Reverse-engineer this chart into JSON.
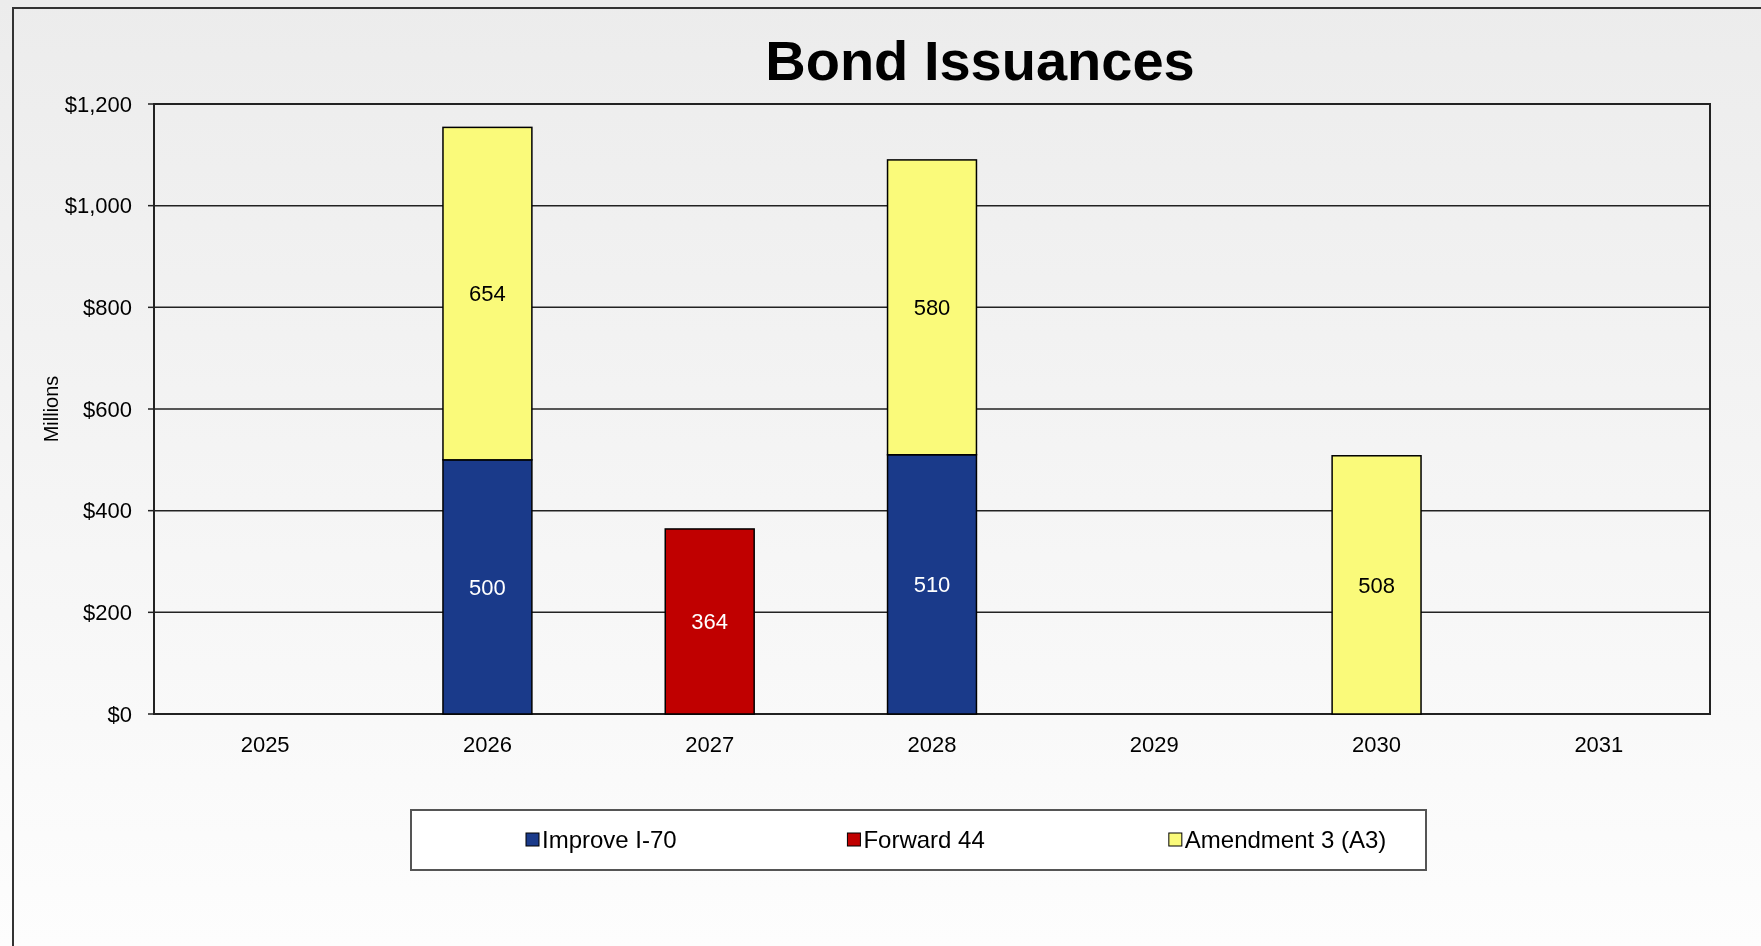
{
  "chart_data": {
    "type": "bar",
    "title": "Bond Issuances",
    "ylabel": "Millions",
    "categories": [
      "2025",
      "2026",
      "2027",
      "2028",
      "2029",
      "2030",
      "2031"
    ],
    "series": [
      {
        "name": "Improve I-70",
        "color": "#1a3a8a",
        "values": [
          null,
          500,
          null,
          510,
          null,
          null,
          null
        ]
      },
      {
        "name": "Forward 44",
        "color": "#c00000",
        "values": [
          null,
          null,
          364,
          null,
          null,
          null,
          null
        ]
      },
      {
        "name": "Amendment 3 (A3)",
        "color": "#fafa7a",
        "values": [
          null,
          654,
          null,
          580,
          null,
          508,
          null
        ]
      }
    ],
    "stacked": true,
    "data_labels": true,
    "ylim": [
      0,
      1200
    ],
    "yticks": [
      {
        "value": 0,
        "label": "$0"
      },
      {
        "value": 200,
        "label": "$200"
      },
      {
        "value": 400,
        "label": "$400"
      },
      {
        "value": 600,
        "label": "$600"
      },
      {
        "value": 800,
        "label": "$800"
      },
      {
        "value": 1000,
        "label": "$1,000"
      },
      {
        "value": 1200,
        "label": "$1,200"
      }
    ],
    "grid": "y",
    "legend": "bottom"
  }
}
